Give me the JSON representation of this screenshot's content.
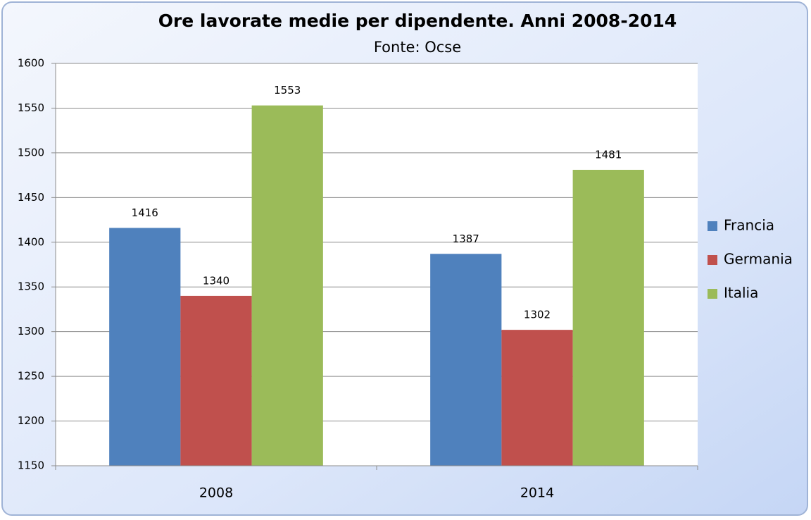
{
  "chart_data": {
    "type": "bar",
    "title": "Ore lavorate medie per dipendente. Anni 2008-2014",
    "subtitle": "Fonte: Ocse",
    "categories": [
      "2008",
      "2014"
    ],
    "series": [
      {
        "name": "Francia",
        "color": "#4f81bd",
        "values": [
          1416,
          1387
        ]
      },
      {
        "name": "Germania",
        "color": "#c0504d",
        "values": [
          1340,
          1302
        ]
      },
      {
        "name": "Italia",
        "color": "#9bbb59",
        "values": [
          1553,
          1481
        ]
      }
    ],
    "ylim": [
      1150,
      1600
    ],
    "yticks": [
      1150,
      1200,
      1250,
      1300,
      1350,
      1400,
      1450,
      1500,
      1550,
      1600
    ],
    "grid": true,
    "legend": "right"
  }
}
